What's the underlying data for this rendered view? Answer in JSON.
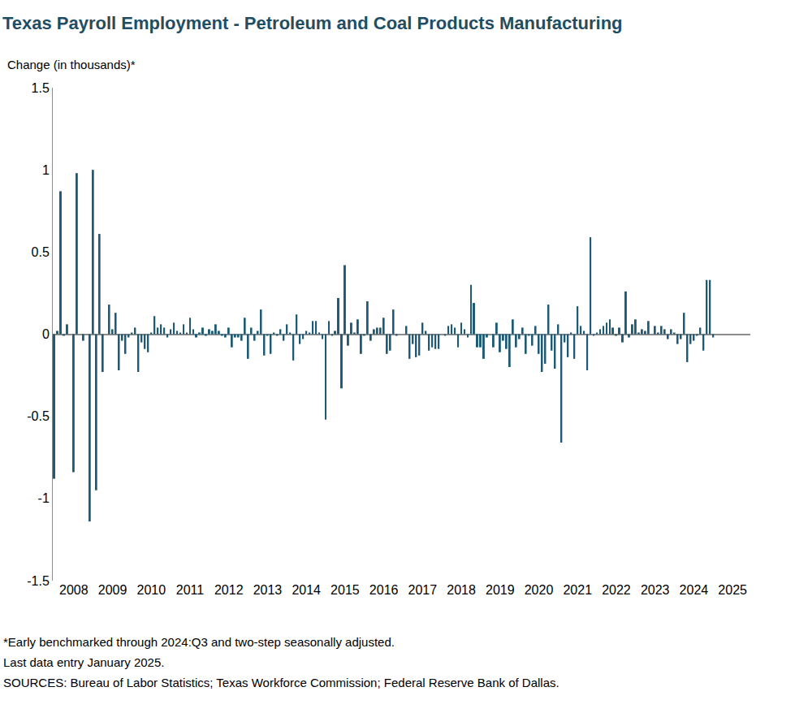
{
  "chart_data": {
    "type": "bar",
    "title": "Texas Payroll Employment - Petroleum and Coal Products Manufacturing",
    "y_label": "Change (in thousands)*",
    "notes": [
      "*Early benchmarked through 2024:Q3 and two-step seasonally adjusted.",
      "Last data entry January 2025.",
      "SOURCES: Bureau of Labor Statistics; Texas Workforce Commission; Federal Reserve Bank of Dallas."
    ],
    "categories": [
      null,
      null,
      null,
      null,
      null,
      null,
      "2008",
      null,
      null,
      null,
      null,
      null,
      null,
      null,
      null,
      null,
      null,
      null,
      "2009",
      null,
      null,
      null,
      null,
      null,
      null,
      null,
      null,
      null,
      null,
      null,
      "2010",
      null,
      null,
      null,
      null,
      null,
      null,
      null,
      null,
      null,
      null,
      null,
      "2011",
      null,
      null,
      null,
      null,
      null,
      null,
      null,
      null,
      null,
      null,
      null,
      "2012",
      null,
      null,
      null,
      null,
      null,
      null,
      null,
      null,
      null,
      null,
      null,
      "2013",
      null,
      null,
      null,
      null,
      null,
      null,
      null,
      null,
      null,
      null,
      null,
      "2014",
      null,
      null,
      null,
      null,
      null,
      null,
      null,
      null,
      null,
      null,
      null,
      "2015",
      null,
      null,
      null,
      null,
      null,
      null,
      null,
      null,
      null,
      null,
      null,
      "2016",
      null,
      null,
      null,
      null,
      null,
      null,
      null,
      null,
      null,
      null,
      null,
      "2017",
      null,
      null,
      null,
      null,
      null,
      null,
      null,
      null,
      null,
      null,
      null,
      "2018",
      null,
      null,
      null,
      null,
      null,
      null,
      null,
      null,
      null,
      null,
      null,
      "2019",
      null,
      null,
      null,
      null,
      null,
      null,
      null,
      null,
      null,
      null,
      null,
      "2020",
      null,
      null,
      null,
      null,
      null,
      null,
      null,
      null,
      null,
      null,
      null,
      "2021",
      null,
      null,
      null,
      null,
      null,
      null,
      null,
      null,
      null,
      null,
      null,
      "2022",
      null,
      null,
      null,
      null,
      null,
      null,
      null,
      null,
      null,
      null,
      null,
      "2023",
      null,
      null,
      null,
      null,
      null,
      null,
      null,
      null,
      null,
      null,
      null,
      "2024",
      null,
      null,
      null,
      null,
      null,
      null,
      null,
      null,
      null,
      null,
      null,
      "2025",
      null,
      null,
      null,
      null,
      null
    ],
    "values": [
      -0.88,
      0.02,
      0.87,
      -0.01,
      0.06,
      0,
      -0.84,
      0.98,
      0,
      -0.04,
      0,
      -1.14,
      1.0,
      -0.95,
      0.61,
      -0.23,
      0,
      0.18,
      0.03,
      0.13,
      -0.22,
      -0.04,
      -0.12,
      -0.02,
      0.01,
      0.04,
      -0.23,
      -0.05,
      -0.09,
      -0.11,
      0.01,
      0.11,
      0.04,
      0.06,
      0.04,
      -0.02,
      0.03,
      0.07,
      0.02,
      0.01,
      0.06,
      0.01,
      0.1,
      0.03,
      -0.02,
      0.01,
      0.04,
      -0.01,
      0.03,
      0.02,
      0.06,
      0.02,
      -0.01,
      -0.02,
      0.04,
      -0.08,
      -0.02,
      -0.02,
      -0.04,
      0.1,
      -0.15,
      0.04,
      -0.04,
      0.02,
      0.15,
      -0.13,
      -0.01,
      -0.12,
      0.01,
      -0.01,
      0.03,
      -0.04,
      0.06,
      0.01,
      -0.16,
      0.12,
      -0.06,
      -0.03,
      0.02,
      0.01,
      0.08,
      0.08,
      0.01,
      -0.03,
      -0.52,
      0.08,
      -0.01,
      0.02,
      0.22,
      -0.33,
      0.42,
      -0.07,
      0.07,
      0.01,
      0.09,
      -0.12,
      -0.01,
      0.2,
      -0.04,
      0.03,
      0.04,
      0.04,
      0.1,
      -0.12,
      -0.1,
      0.15,
      -0.01,
      0,
      0,
      0.05,
      -0.15,
      -0.06,
      -0.14,
      -0.13,
      0.07,
      0.02,
      -0.1,
      -0.08,
      -0.09,
      -0.09,
      0,
      -0.01,
      0.05,
      0.06,
      0.04,
      -0.08,
      0.07,
      0.03,
      -0.02,
      0.3,
      0.19,
      -0.08,
      -0.08,
      -0.15,
      -0.02,
      0,
      -0.08,
      0.07,
      -0.11,
      -0.04,
      -0.09,
      -0.2,
      0.09,
      -0.08,
      -0.03,
      0.04,
      -0.12,
      -0.01,
      -0.07,
      0.05,
      -0.12,
      -0.23,
      -0.18,
      0.18,
      -0.1,
      -0.21,
      0.06,
      -0.66,
      -0.05,
      -0.14,
      0.01,
      -0.15,
      0.17,
      0.05,
      0.02,
      -0.22,
      0.59,
      -0.01,
      0.01,
      0.03,
      0.05,
      0.07,
      0.09,
      0.04,
      -0.01,
      0.04,
      -0.05,
      0.26,
      -0.02,
      0.06,
      0.09,
      0.01,
      0.03,
      0.02,
      0.08,
      0,
      0.05,
      0.01,
      0.05,
      0.03,
      -0.03,
      0.03,
      0.01,
      -0.06,
      -0.03,
      0.13,
      -0.17,
      -0.06,
      -0.04,
      -0.01,
      0.04,
      -0.1,
      0.33,
      0.33,
      -0.02,
      null,
      null,
      null,
      null,
      null,
      null,
      null,
      null,
      null,
      null,
      null
    ],
    "color": "#1d5a78",
    "ylim": [
      -1.5,
      1.5
    ],
    "yticks": [
      -1.5,
      -1,
      -0.5,
      0,
      0.5,
      1,
      1.5
    ],
    "grid": false
  }
}
